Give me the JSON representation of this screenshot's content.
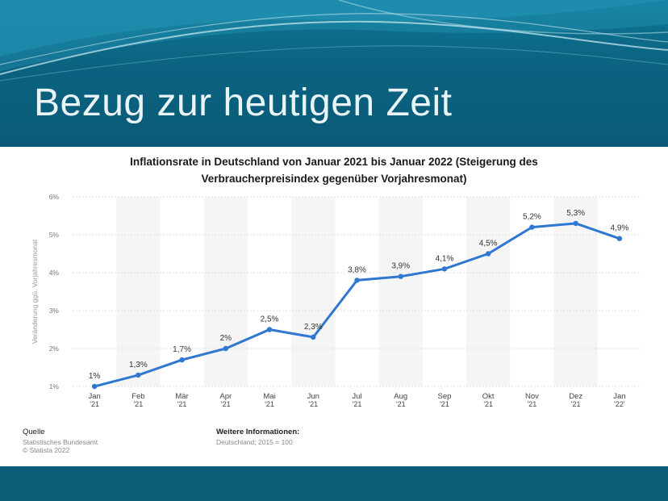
{
  "slide": {
    "title": "Bezug zur heutigen Zeit"
  },
  "colors": {
    "header_band": "#0b5d78",
    "line": "#2f77d0",
    "panel": "#ffffff"
  },
  "chart_data": {
    "type": "line",
    "title_line1": "Inflationsrate in Deutschland von Januar 2021 bis Januar 2022 (Steigerung des",
    "title_line2": "Verbraucherpreisindex gegenüber Vorjahresmonat)",
    "ylabel": "Veränderung ggü. Vorjahresmonat",
    "ylim": [
      1,
      6
    ],
    "yticks": [
      {
        "value": 6,
        "label": "6%"
      },
      {
        "value": 5,
        "label": "5%"
      },
      {
        "value": 4,
        "label": "4%"
      },
      {
        "value": 3,
        "label": "3%"
      },
      {
        "value": 2,
        "label": "2%"
      },
      {
        "value": 1,
        "label": "1%"
      }
    ],
    "grid": true,
    "categories": [
      {
        "month": "Jan",
        "year": "'21"
      },
      {
        "month": "Feb",
        "year": "'21"
      },
      {
        "month": "Mär",
        "year": "'21"
      },
      {
        "month": "Apr",
        "year": "'21"
      },
      {
        "month": "Mai",
        "year": "'21"
      },
      {
        "month": "Jun",
        "year": "'21"
      },
      {
        "month": "Jul",
        "year": "'21"
      },
      {
        "month": "Aug",
        "year": "'21"
      },
      {
        "month": "Sep",
        "year": "'21"
      },
      {
        "month": "Okt",
        "year": "'21"
      },
      {
        "month": "Nov",
        "year": "'21"
      },
      {
        "month": "Dez",
        "year": "'21"
      },
      {
        "month": "Jan",
        "year": "'22'"
      }
    ],
    "values": [
      1.0,
      1.3,
      1.7,
      2.0,
      2.5,
      2.3,
      3.8,
      3.9,
      4.1,
      4.5,
      5.2,
      5.3,
      4.9
    ],
    "data_labels": [
      "1%",
      "1,3%",
      "1,7%",
      "2%",
      "2,5%",
      "2,3%",
      "3,8%",
      "3,9%",
      "4,1%",
      "4,5%",
      "5,2%",
      "5,3%",
      "4,9%"
    ]
  },
  "footer": {
    "source_heading": "Quelle",
    "source_line1": "Statistisches Bundesamt",
    "source_line2": "© Statista 2022",
    "info_heading": "Weitere Informationen:",
    "info_line1": "Deutschland; 2015 = 100"
  }
}
